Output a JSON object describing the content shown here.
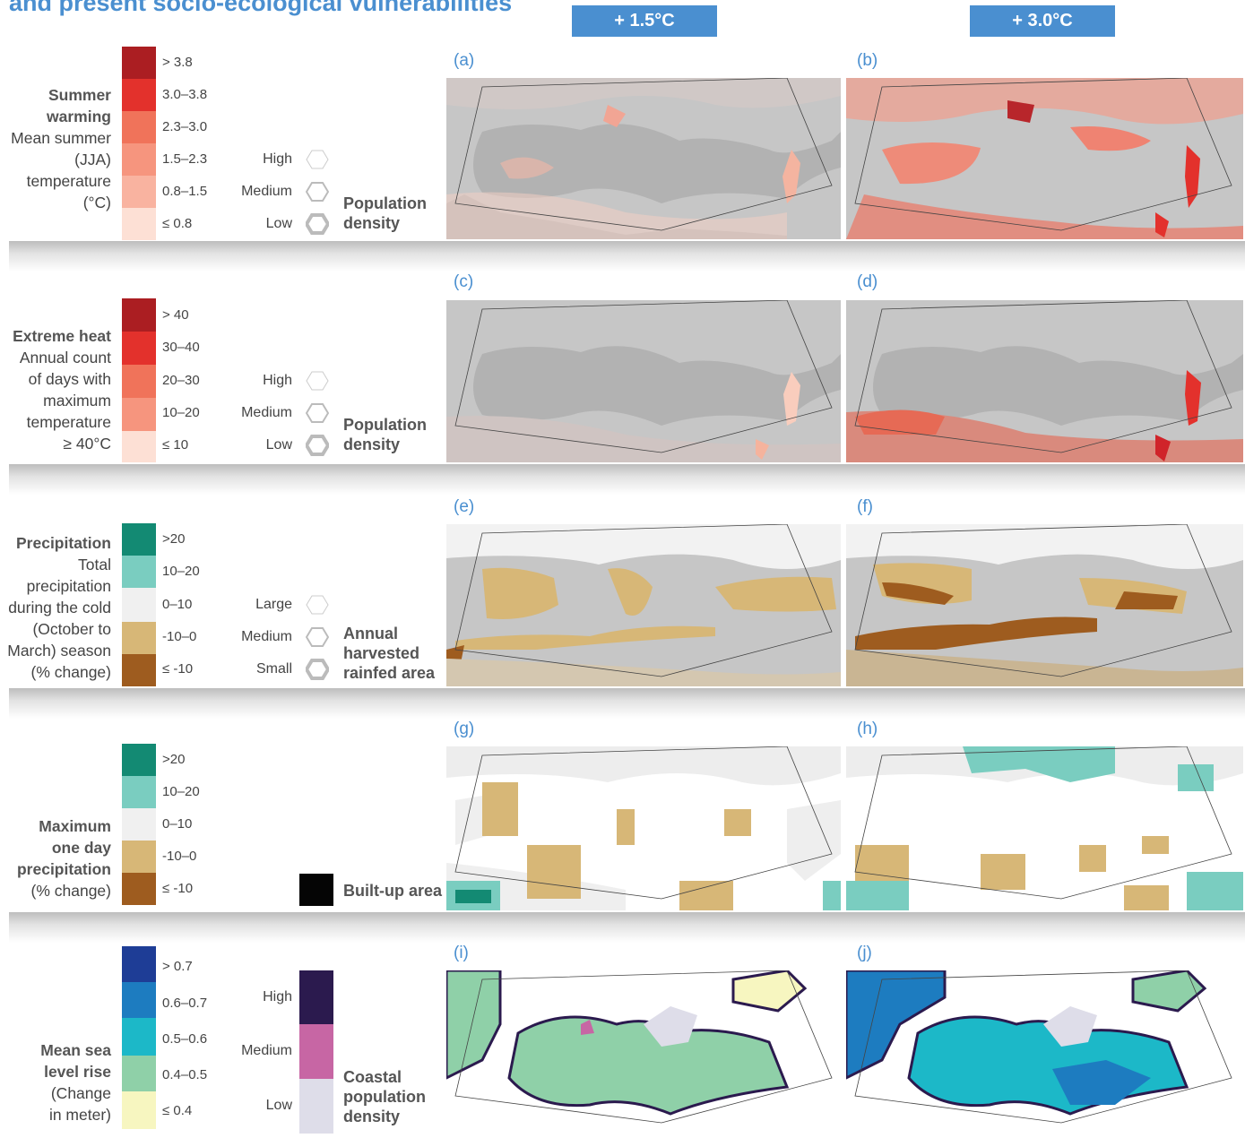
{
  "title_line": "and present socio-ecological vulnerabilities",
  "scenarios": [
    "+ 1.5°C",
    "+ 3.0°C"
  ],
  "colors": {
    "accent": "#4a8fd0",
    "land": "#c2c2c2",
    "reds": [
      "#ab1e22",
      "#e3312c",
      "#f0735a",
      "#f6957e",
      "#f9b3a0",
      "#fde0d5"
    ],
    "precip": [
      "#138a73",
      "#7acdc0",
      "#f0f0f0",
      "#d7b777",
      "#9e5c1f"
    ],
    "sea": [
      "#1e3d96",
      "#1d7cc0",
      "#1cb8c8",
      "#8fd0a8",
      "#f7f6c0"
    ],
    "coastal": [
      "#2b1a4e",
      "#c766a4",
      "#dedde9"
    ]
  },
  "rows": [
    {
      "name": "Summer warming",
      "desc": [
        "Mean summer",
        "(JJA)",
        "temperature",
        "(°C)"
      ],
      "classes": [
        "> 3.8",
        "3.0–3.8",
        "2.3–3.0",
        "1.5–2.3",
        "0.8–1.5",
        "≤ 0.8"
      ],
      "hex_levels": [
        "High",
        "Medium",
        "Low"
      ],
      "overlay": [
        "Population",
        "density"
      ],
      "panels": [
        "(a)",
        "(b)"
      ]
    },
    {
      "name": "Extreme heat",
      "desc": [
        "Annual count",
        "of days with",
        "maximum",
        "temperature",
        "≥ 40°C"
      ],
      "classes": [
        "> 40",
        "30–40",
        "20–30",
        "10–20",
        "≤ 10"
      ],
      "hex_levels": [
        "High",
        "Medium",
        "Low"
      ],
      "overlay": [
        "Population",
        "density"
      ],
      "panels": [
        "(c)",
        "(d)"
      ]
    },
    {
      "name": "Precipitation",
      "desc": [
        "Total",
        "precipitation",
        "during the cold",
        "(October to",
        "March) season",
        "(% change)"
      ],
      "classes": [
        ">20",
        "10–20",
        "0–10",
        "-10–0",
        "≤ -10"
      ],
      "hex_levels": [
        "Large",
        "Medium",
        "Small"
      ],
      "overlay": [
        "Annual",
        "harvested",
        "rainfed area"
      ],
      "panels": [
        "(e)",
        "(f)"
      ]
    },
    {
      "name_lines": [
        "Maximum",
        "one day",
        "precipitation"
      ],
      "desc": [
        "(% change)"
      ],
      "classes": [
        ">20",
        "10–20",
        "0–10",
        "-10–0",
        "≤ -10"
      ],
      "overlay": [
        "Built-up area"
      ],
      "panels": [
        "(g)",
        "(h)"
      ]
    },
    {
      "name_lines": [
        "Mean sea",
        "level rise"
      ],
      "desc": [
        "(Change",
        "in meter)"
      ],
      "classes": [
        "> 0.7",
        "0.6–0.7",
        "0.5–0.6",
        "0.4–0.5",
        "≤ 0.4"
      ],
      "coastal_levels": [
        "High",
        "Medium",
        "Low"
      ],
      "overlay": [
        "Coastal",
        "population",
        "density"
      ],
      "panels": [
        "(i)",
        "(j)"
      ]
    }
  ]
}
